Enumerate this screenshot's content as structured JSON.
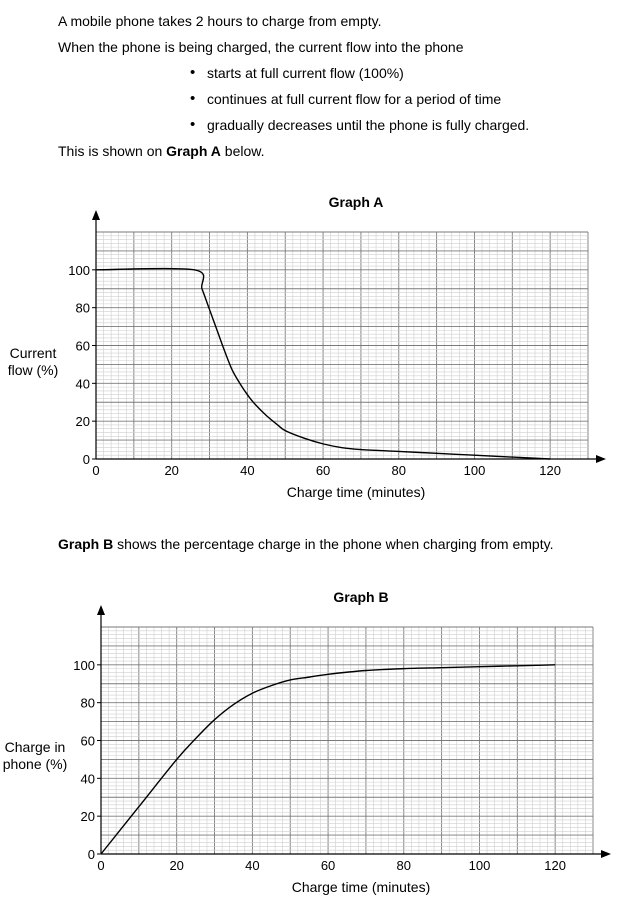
{
  "intro": {
    "line1": "A mobile phone takes 2 hours to charge from empty.",
    "line2": "When the phone is being charged, the current flow into the phone",
    "bullets": [
      "starts at full current flow (100%)",
      "continues at full current flow for a period of time",
      "gradually decreases until the phone is fully charged."
    ],
    "shown_pre": "This is shown on ",
    "shown_bold": "Graph A",
    "shown_post": " below."
  },
  "graph_b_intro": {
    "bold": "Graph B",
    "rest": " shows the percentage charge in the phone when charging from empty."
  },
  "chart_data": [
    {
      "type": "line",
      "title": "Graph A",
      "xlabel": "Charge time (minutes)",
      "ylabel_lines": [
        "Current",
        "flow (%)"
      ],
      "xlim": [
        0,
        130
      ],
      "ylim": [
        0,
        120
      ],
      "xticks": [
        0,
        20,
        40,
        60,
        80,
        100,
        120
      ],
      "yticks": [
        0,
        20,
        40,
        60,
        80,
        100
      ],
      "grid": true,
      "series": [
        {
          "x": [
            0,
            26,
            28,
            30,
            32,
            34,
            36,
            38,
            40,
            42,
            45,
            48,
            50,
            55,
            60,
            65,
            70,
            80,
            90,
            100,
            110,
            120
          ],
          "y": [
            100,
            100,
            90,
            79,
            68,
            57,
            47,
            40,
            34,
            29,
            23,
            18,
            15,
            11,
            8,
            6,
            5,
            4,
            3,
            2,
            1,
            0
          ]
        }
      ]
    },
    {
      "type": "line",
      "title": "Graph B",
      "xlabel": "Charge time (minutes)",
      "ylabel_lines": [
        "Charge in",
        "phone (%)"
      ],
      "xlim": [
        0,
        130
      ],
      "ylim": [
        0,
        120
      ],
      "xticks": [
        0,
        20,
        40,
        60,
        80,
        100,
        120
      ],
      "yticks": [
        0,
        20,
        40,
        60,
        80,
        100
      ],
      "grid": true,
      "series": [
        {
          "x": [
            0,
            10,
            20,
            25,
            30,
            35,
            40,
            45,
            50,
            55,
            60,
            70,
            80,
            90,
            100,
            110,
            120
          ],
          "y": [
            0,
            25,
            50,
            61,
            71,
            79,
            85,
            89,
            92,
            93.5,
            95,
            97,
            98,
            98.5,
            99,
            99.5,
            100
          ]
        }
      ]
    }
  ]
}
